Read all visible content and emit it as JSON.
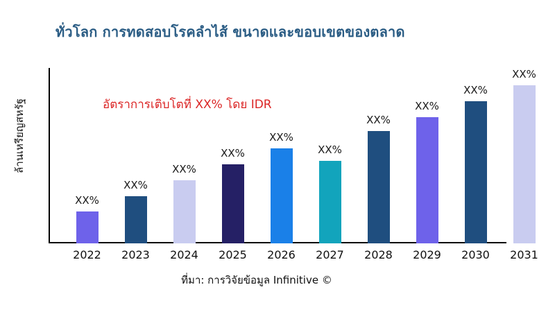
{
  "title": "ทั่วโลก การทดสอบโรคลำไส้ ขนาดและขอบเขตของตลาด",
  "annotation": "อัตราการเติบโตที่ XX% โดย IDR",
  "y_axis_label": "ล้านเหรียญสหรัฐ",
  "source": "ที่มา: การวิจัยข้อมูล Infinitive ©",
  "colors": {
    "title": "#2A5C84",
    "annotation": "#DB2525",
    "axis": "#000000",
    "label_text": "#1A1A1A",
    "background": "#FFFFFF"
  },
  "chart_data": {
    "type": "bar",
    "title": "ทั่วโลก การทดสอบโรคลำไส้ ขนาดและขอบเขตของตลาด",
    "xlabel": "",
    "ylabel": "ล้านเหรียญสหรัฐ",
    "categories": [
      "2022",
      "2023",
      "2024",
      "2025",
      "2026",
      "2027",
      "2028",
      "2029",
      "2030",
      "2031"
    ],
    "values": [
      20,
      30,
      40,
      50,
      60,
      52,
      71,
      80,
      90,
      100
    ],
    "values_note": "relative heights; numeric axis values not shown in chart",
    "bar_labels": [
      "XX%",
      "XX%",
      "XX%",
      "XX%",
      "XX%",
      "XX%",
      "XX%",
      "XX%",
      "XX%",
      "XX%"
    ],
    "bar_colors": [
      "#6E62EA",
      "#1F4E7F",
      "#C9CCF0",
      "#252065",
      "#1A80E8",
      "#12A4BC",
      "#1F4E7F",
      "#6E62EA",
      "#1F4E7F",
      "#C9CCF0"
    ],
    "ylim": [
      0,
      111
    ],
    "grid": false,
    "legend": "none",
    "annotation": "อัตราการเติบโตที่ XX% โดย IDR",
    "source": "ที่มา: การวิจัยข้อมูล Infinitive ©"
  }
}
